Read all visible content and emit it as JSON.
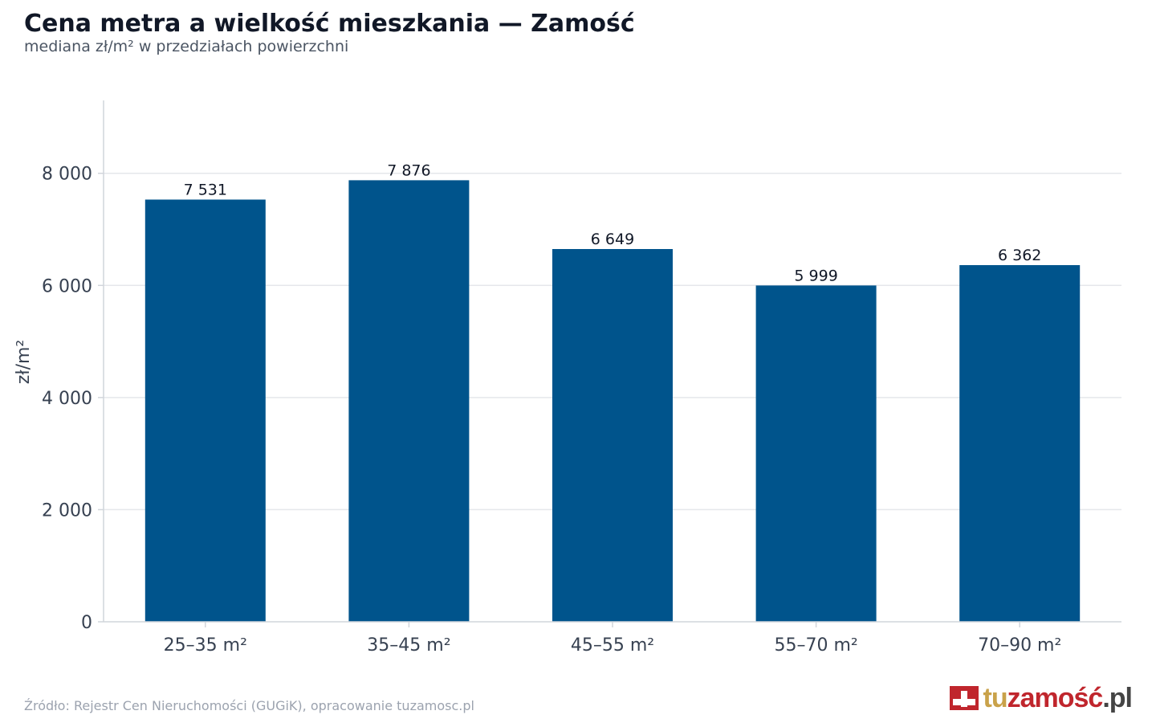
{
  "title": "Cena metra a wielkość mieszkania — Zamość",
  "subtitle": "mediana zł/m² w przedziałach powierzchni",
  "source": "Źródło: Rejestr Cen Nieruchomości (GUGiK), opracowanie tuzamosc.pl",
  "logo": {
    "part1": "tu",
    "part2": "zamość",
    "part3": ".pl"
  },
  "colors": {
    "bar": "#00548c",
    "grid": "#e5e7eb",
    "axis": "#d1d5db",
    "text": "#374151"
  },
  "chart_data": {
    "type": "bar",
    "categories": [
      "25–35 m²",
      "35–45 m²",
      "45–55 m²",
      "55–70 m²",
      "70–90 m²"
    ],
    "values": [
      7531,
      7876,
      6649,
      5999,
      6362
    ],
    "value_labels": [
      "7 531",
      "7 876",
      "6 649",
      "5 999",
      "6 362"
    ],
    "ylabel": "zł/m²",
    "ylim": [
      0,
      9300
    ],
    "yticks": [
      0,
      2000,
      4000,
      6000,
      8000
    ],
    "ytick_labels": [
      "0",
      "2 000",
      "4 000",
      "6 000",
      "8 000"
    ],
    "grid": true
  }
}
